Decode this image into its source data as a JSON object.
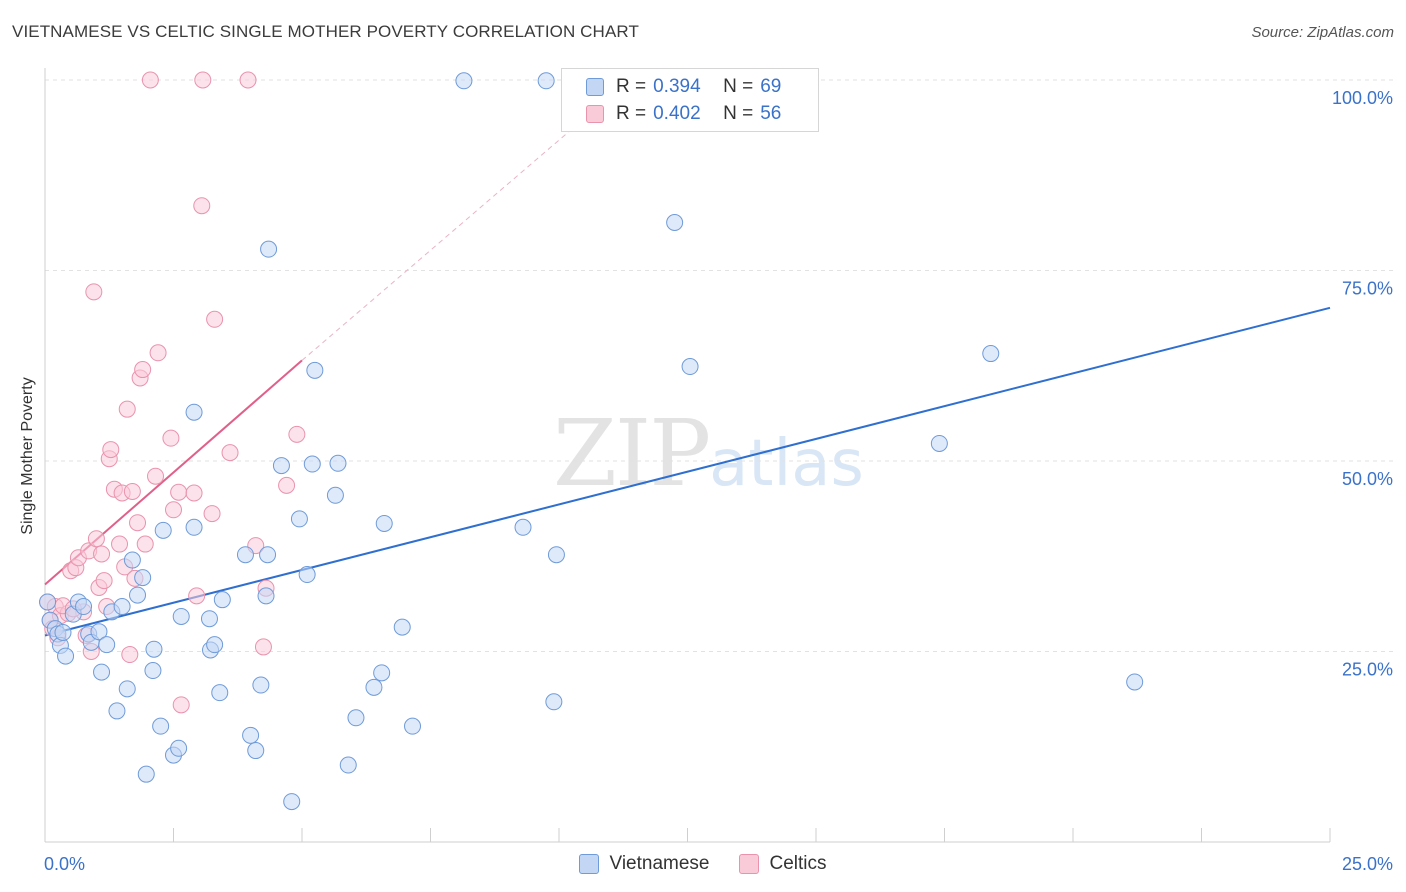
{
  "title": "VIETNAMESE VS CELTIC SINGLE MOTHER POVERTY CORRELATION CHART",
  "source": "Source: ZipAtlas.com",
  "watermark": {
    "zip": "ZIP",
    "atlas": "atlas"
  },
  "colors": {
    "blue_fill": "#c3d7f5",
    "blue_stroke": "#6f9bd8",
    "blue_line": "#2f6fcf",
    "pink_fill": "#f9cbd8",
    "pink_stroke": "#e993ad",
    "pink_line": "#e0608a",
    "axis_label": "#3a72c9"
  },
  "stats": [
    {
      "series": "Vietnamese",
      "r_label": "R =",
      "r_value": "0.394",
      "n_label": "N =",
      "n_value": "69"
    },
    {
      "series": "Celtics",
      "r_label": "R =",
      "r_value": "0.402",
      "n_label": "N =",
      "n_value": "56"
    }
  ],
  "chart_data": {
    "type": "scatter",
    "title": "VIETNAMESE VS CELTIC SINGLE MOTHER POVERTY CORRELATION CHART",
    "xlabel": "",
    "ylabel": "Single Mother Poverty",
    "xlim": [
      0,
      25
    ],
    "ylim": [
      0,
      100
    ],
    "x_tick_labels": [
      "0.0%",
      "25.0%"
    ],
    "y_tick_labels": [
      "25.0%",
      "50.0%",
      "75.0%",
      "100.0%"
    ],
    "y_ticks": [
      25,
      50,
      75,
      100
    ],
    "grid": "horizontal dashed",
    "legend": "bottom-center",
    "series": [
      {
        "name": "Vietnamese",
        "color": "#6f9bd8",
        "trendline": {
          "x": [
            0,
            25
          ],
          "y": [
            27.1,
            70.1
          ]
        },
        "points": [
          [
            0.05,
            31.5
          ],
          [
            0.1,
            29.1
          ],
          [
            0.2,
            28.0
          ],
          [
            0.25,
            27.3
          ],
          [
            0.3,
            25.8
          ],
          [
            0.35,
            27.5
          ],
          [
            0.4,
            24.4
          ],
          [
            0.55,
            29.9
          ],
          [
            0.65,
            31.5
          ],
          [
            0.75,
            30.9
          ],
          [
            0.85,
            27.3
          ],
          [
            0.9,
            26.2
          ],
          [
            1.05,
            27.6
          ],
          [
            1.1,
            22.3
          ],
          [
            1.2,
            25.9
          ],
          [
            1.3,
            30.2
          ],
          [
            1.4,
            17.2
          ],
          [
            1.5,
            30.9
          ],
          [
            1.6,
            20.1
          ],
          [
            1.7,
            37.0
          ],
          [
            1.8,
            32.4
          ],
          [
            1.9,
            34.7
          ],
          [
            1.97,
            8.9
          ],
          [
            2.1,
            22.5
          ],
          [
            2.12,
            25.3
          ],
          [
            2.25,
            15.2
          ],
          [
            2.3,
            40.9
          ],
          [
            2.5,
            11.4
          ],
          [
            2.6,
            12.3
          ],
          [
            2.65,
            29.6
          ],
          [
            2.9,
            56.4
          ],
          [
            2.9,
            41.3
          ],
          [
            3.2,
            29.3
          ],
          [
            3.22,
            25.2
          ],
          [
            3.3,
            25.9
          ],
          [
            3.4,
            19.6
          ],
          [
            3.45,
            31.8
          ],
          [
            3.9,
            37.7
          ],
          [
            4.0,
            14.0
          ],
          [
            4.1,
            12.0
          ],
          [
            4.2,
            20.6
          ],
          [
            4.3,
            32.3
          ],
          [
            4.33,
            37.7
          ],
          [
            4.35,
            77.8
          ],
          [
            4.6,
            49.4
          ],
          [
            4.8,
            5.3
          ],
          [
            4.95,
            42.4
          ],
          [
            5.1,
            35.1
          ],
          [
            5.2,
            49.6
          ],
          [
            5.25,
            61.9
          ],
          [
            5.65,
            45.5
          ],
          [
            5.7,
            49.7
          ],
          [
            5.9,
            10.1
          ],
          [
            6.05,
            16.3
          ],
          [
            6.4,
            20.3
          ],
          [
            6.55,
            22.2
          ],
          [
            6.6,
            41.8
          ],
          [
            6.95,
            28.2
          ],
          [
            7.15,
            15.2
          ],
          [
            8.15,
            99.9
          ],
          [
            9.3,
            41.3
          ],
          [
            9.9,
            18.4
          ],
          [
            9.95,
            37.7
          ],
          [
            9.75,
            99.9
          ],
          [
            12.25,
            81.3
          ],
          [
            12.55,
            62.4
          ],
          [
            17.4,
            52.3
          ],
          [
            18.4,
            64.1
          ],
          [
            21.2,
            21.0
          ]
        ]
      },
      {
        "name": "Celtics",
        "color": "#e993ad",
        "trendline": {
          "x": [
            0,
            5.0
          ],
          "y": [
            33.8,
            63.2
          ],
          "dashed_extension": {
            "x": [
              5.0,
              10.5
            ],
            "y": [
              63.2,
              95.0
            ]
          }
        },
        "points": [
          [
            0.05,
            31.5
          ],
          [
            0.1,
            29.1
          ],
          [
            0.15,
            28.0
          ],
          [
            0.2,
            30.9
          ],
          [
            0.25,
            26.8
          ],
          [
            0.3,
            29.7
          ],
          [
            0.45,
            30.0
          ],
          [
            0.5,
            35.6
          ],
          [
            0.6,
            36.0
          ],
          [
            0.65,
            37.3
          ],
          [
            0.75,
            30.2
          ],
          [
            0.8,
            27.1
          ],
          [
            0.85,
            38.2
          ],
          [
            0.9,
            25.0
          ],
          [
            0.95,
            72.2
          ],
          [
            1.0,
            39.8
          ],
          [
            1.05,
            33.4
          ],
          [
            1.1,
            37.8
          ],
          [
            1.15,
            34.3
          ],
          [
            1.2,
            30.9
          ],
          [
            1.25,
            50.3
          ],
          [
            1.28,
            51.5
          ],
          [
            1.35,
            46.3
          ],
          [
            1.45,
            39.1
          ],
          [
            1.5,
            45.8
          ],
          [
            1.55,
            36.1
          ],
          [
            1.6,
            56.8
          ],
          [
            1.65,
            24.6
          ],
          [
            1.7,
            46.0
          ],
          [
            1.75,
            34.6
          ],
          [
            1.8,
            41.9
          ],
          [
            1.85,
            60.9
          ],
          [
            1.9,
            62.0
          ],
          [
            1.95,
            39.1
          ],
          [
            2.05,
            100.0
          ],
          [
            2.15,
            48.0
          ],
          [
            2.2,
            64.2
          ],
          [
            2.45,
            53.0
          ],
          [
            2.5,
            43.6
          ],
          [
            2.6,
            45.9
          ],
          [
            2.65,
            18.0
          ],
          [
            2.9,
            45.8
          ],
          [
            2.95,
            32.3
          ],
          [
            3.05,
            83.5
          ],
          [
            3.07,
            100.0
          ],
          [
            3.25,
            43.1
          ],
          [
            3.3,
            68.6
          ],
          [
            3.6,
            51.1
          ],
          [
            3.95,
            100.0
          ],
          [
            4.1,
            38.9
          ],
          [
            4.25,
            25.6
          ],
          [
            4.3,
            33.3
          ],
          [
            4.7,
            46.8
          ],
          [
            4.9,
            53.5
          ],
          [
            0.35,
            31.0
          ],
          [
            0.55,
            30.6
          ]
        ]
      }
    ]
  }
}
